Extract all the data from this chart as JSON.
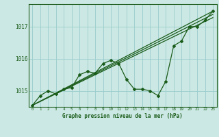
{
  "xlabel": "Graphe pression niveau de la mer (hPa)",
  "bg_color": "#cce8e4",
  "grid_color": "#99cccc",
  "line_color": "#1a5c1a",
  "x_ticks": [
    0,
    1,
    2,
    3,
    4,
    5,
    6,
    7,
    8,
    9,
    10,
    11,
    12,
    13,
    14,
    15,
    16,
    17,
    18,
    19,
    20,
    21,
    22,
    23
  ],
  "y_ticks": [
    1015,
    1016,
    1017
  ],
  "ylim": [
    1014.5,
    1017.7
  ],
  "xlim": [
    -0.5,
    23.5
  ],
  "series_main": [
    1014.55,
    1014.85,
    1015.0,
    1014.9,
    1015.05,
    1015.1,
    1015.5,
    1015.6,
    1015.55,
    1015.85,
    1015.95,
    1015.85,
    1015.35,
    1015.05,
    1015.05,
    1015.0,
    1014.85,
    1015.3,
    1016.4,
    1016.55,
    1017.0,
    1017.0,
    1017.2,
    1017.48
  ],
  "trend1_x": [
    0,
    23
  ],
  "trend1_y": [
    1014.55,
    1017.48
  ],
  "trend2_x": [
    0,
    23
  ],
  "trend2_y": [
    1014.55,
    1017.38
  ],
  "trend3_x": [
    0,
    23
  ],
  "trend3_y": [
    1014.55,
    1017.28
  ]
}
